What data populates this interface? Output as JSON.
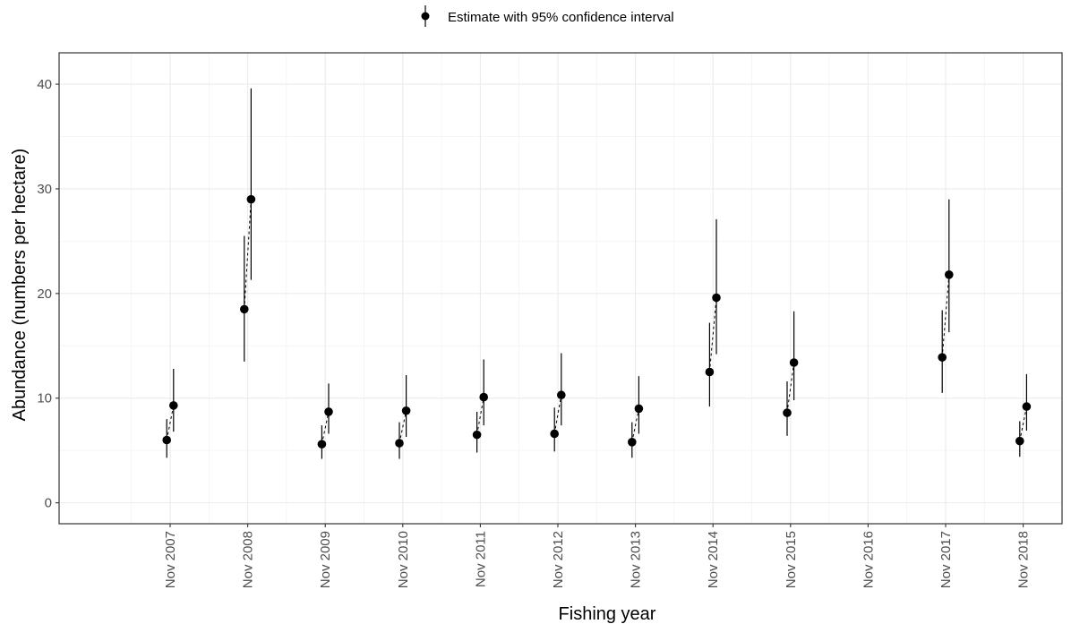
{
  "chart_data": {
    "type": "scatter",
    "title": "",
    "xlabel": "Fishing year",
    "ylabel": "Abundance (numbers per hectare)",
    "ylim": [
      -2,
      43
    ],
    "yticks": [
      0,
      10,
      20,
      30,
      40
    ],
    "grid": true,
    "legend": {
      "label": "Estimate with 95% confidence interval",
      "position": "top"
    },
    "categories": [
      "Nov 2007",
      "Nov 2008",
      "Nov 2009",
      "Nov 2010",
      "Nov 2011",
      "Nov 2012",
      "Nov 2013",
      "Nov 2014",
      "Nov 2015",
      "Nov 2016",
      "Nov 2017",
      "Nov 2018"
    ],
    "series": [
      {
        "estimates": [
          {
            "category": "Nov 2007",
            "value": 6.0,
            "lower": 4.3,
            "upper": 8.0
          },
          {
            "category": "Nov 2008",
            "value": 18.5,
            "lower": 13.5,
            "upper": 25.5
          },
          {
            "category": "Nov 2009",
            "value": 5.6,
            "lower": 4.2,
            "upper": 7.4
          },
          {
            "category": "Nov 2010",
            "value": 5.7,
            "lower": 4.2,
            "upper": 7.7
          },
          {
            "category": "Nov 2011",
            "value": 6.5,
            "lower": 4.8,
            "upper": 8.7
          },
          {
            "category": "Nov 2012",
            "value": 6.6,
            "lower": 4.9,
            "upper": 9.1
          },
          {
            "category": "Nov 2013",
            "value": 5.8,
            "lower": 4.3,
            "upper": 7.7
          },
          {
            "category": "Nov 2014",
            "value": 12.5,
            "lower": 9.2,
            "upper": 17.2
          },
          {
            "category": "Nov 2015",
            "value": 8.6,
            "lower": 6.4,
            "upper": 11.6
          },
          {
            "category": "Nov 2017",
            "value": 13.9,
            "lower": 10.5,
            "upper": 18.4
          },
          {
            "category": "Nov 2018",
            "value": 5.9,
            "lower": 4.4,
            "upper": 7.8
          }
        ]
      },
      {
        "estimates": [
          {
            "category": "Nov 2007",
            "value": 9.3,
            "lower": 6.8,
            "upper": 12.8
          },
          {
            "category": "Nov 2008",
            "value": 29.0,
            "lower": 21.3,
            "upper": 39.6
          },
          {
            "category": "Nov 2009",
            "value": 8.7,
            "lower": 6.6,
            "upper": 11.4
          },
          {
            "category": "Nov 2010",
            "value": 8.8,
            "lower": 6.3,
            "upper": 12.2
          },
          {
            "category": "Nov 2011",
            "value": 10.1,
            "lower": 7.4,
            "upper": 13.7
          },
          {
            "category": "Nov 2012",
            "value": 10.3,
            "lower": 7.4,
            "upper": 14.3
          },
          {
            "category": "Nov 2013",
            "value": 9.0,
            "lower": 6.6,
            "upper": 12.1
          },
          {
            "category": "Nov 2014",
            "value": 19.6,
            "lower": 14.2,
            "upper": 27.1
          },
          {
            "category": "Nov 2015",
            "value": 13.4,
            "lower": 9.8,
            "upper": 18.3
          },
          {
            "category": "Nov 2017",
            "value": 21.8,
            "lower": 16.3,
            "upper": 29.0
          },
          {
            "category": "Nov 2018",
            "value": 9.2,
            "lower": 6.9,
            "upper": 12.3
          }
        ]
      }
    ]
  }
}
